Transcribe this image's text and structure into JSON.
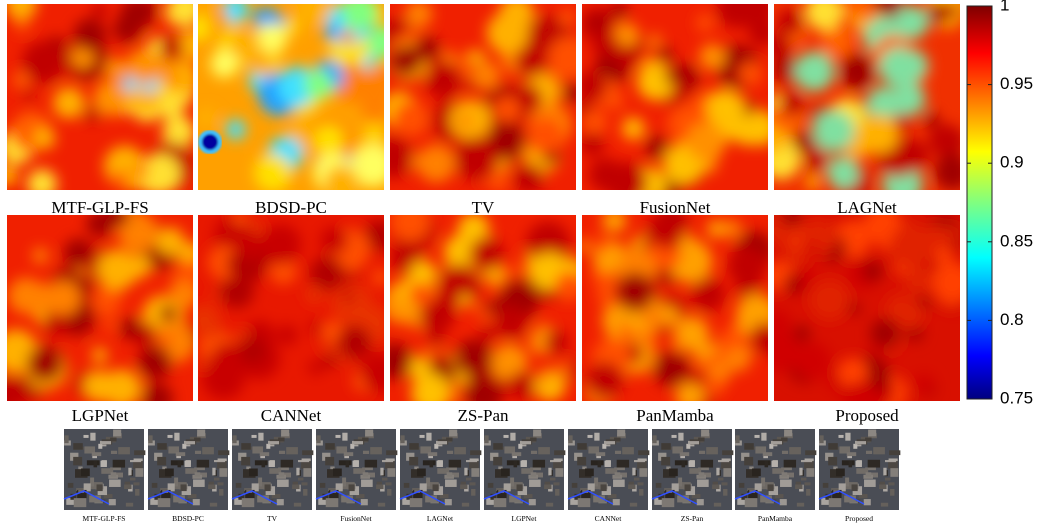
{
  "panels": [
    "MTF-GLP-FS",
    "BDSD-PC",
    "TV",
    "FusionNet",
    "LAGNet",
    "LGPNet",
    "CANNet",
    "ZS-Pan",
    "PanMamba",
    "Proposed"
  ],
  "colorbar": {
    "lim": [
      0.75,
      1
    ],
    "ticks": [
      0.75,
      0.8,
      0.85,
      0.9,
      0.95,
      1
    ]
  },
  "thumbnails": [
    "MTF-GLP-FS",
    "BDSD-PC",
    "TV",
    "FusionNet",
    "LAGNet",
    "LGPNet",
    "CANNet",
    "ZS-Pan",
    "PanMamba",
    "Proposed"
  ]
}
